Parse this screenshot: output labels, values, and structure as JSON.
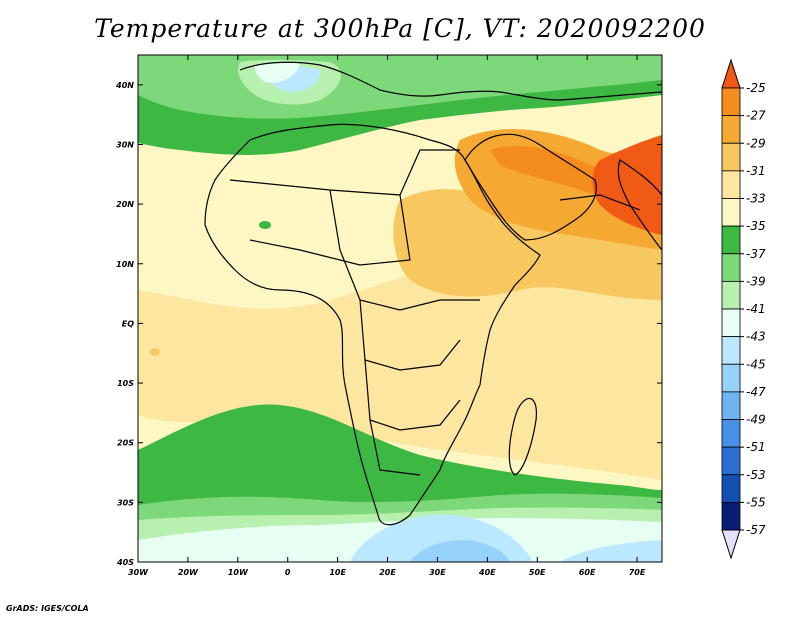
{
  "title": "Temperature at 300hPa [C], VT: 2020092200",
  "credit": "GrADS: IGES/COLA",
  "map": {
    "projection": "latlon",
    "lon_range": [
      -30,
      75
    ],
    "lat_range": [
      -40,
      45
    ],
    "field": "temperature_300hPa",
    "units": "C",
    "lon_ticks": [
      "30W",
      "20W",
      "10W",
      "0",
      "10E",
      "20E",
      "30E",
      "40E",
      "50E",
      "60E",
      "70E"
    ],
    "lat_ticks": [
      "40S",
      "30S",
      "20S",
      "10S",
      "EQ",
      "10N",
      "20N",
      "30N",
      "40N"
    ],
    "regions": [
      {
        "name": "north-green-band",
        "level": -37
      },
      {
        "name": "mediterranean-cold",
        "level": -41
      },
      {
        "name": "arabia-warm",
        "level": -29
      },
      {
        "name": "india-warm",
        "level": -27
      },
      {
        "name": "east-africa-warm",
        "level": -31
      },
      {
        "name": "tropics",
        "level": -33
      },
      {
        "name": "south-green-band",
        "level": -37
      },
      {
        "name": "south-cold",
        "level": -45
      }
    ]
  },
  "colorbar": {
    "labels": [
      "-25",
      "-27",
      "-29",
      "-31",
      "-33",
      "-35",
      "-37",
      "-39",
      "-41",
      "-43",
      "-45",
      "-47",
      "-49",
      "-51",
      "-53",
      "-55",
      "-57"
    ],
    "colors": [
      "#f05a14",
      "#f58c1e",
      "#f5a832",
      "#f8c860",
      "#fde7a0",
      "#fdf7c4",
      "#3cb843",
      "#7dd87a",
      "#b8f0b0",
      "#e6fff2",
      "#bce8ff",
      "#96d2fa",
      "#6eb4f0",
      "#4690e6",
      "#2a6ed2",
      "#1450b4",
      "#0a1e78",
      "#e6e0fa"
    ],
    "top_arrow_color": "#f05a14",
    "bottom_arrow_color": "#e6e0fa"
  }
}
